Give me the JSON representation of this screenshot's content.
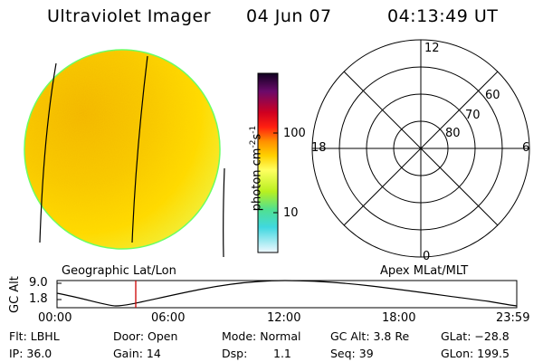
{
  "header": {
    "title": "Ultraviolet Imager",
    "date": "04 Jun 07",
    "time": "04:13:49 UT"
  },
  "colorbar": {
    "unit_text": "photon cm",
    "unit_exp1": "-2",
    "unit_s": "s",
    "unit_exp2": "-1",
    "ticks": [
      "100",
      "10"
    ],
    "colors": [
      "#1a0a3a",
      "#6a0a6a",
      "#c00020",
      "#ff2010",
      "#ff8000",
      "#ffd000",
      "#ffff60",
      "#b8f020",
      "#40e0c0",
      "#e8f8ff"
    ]
  },
  "polar": {
    "labels": {
      "noon": "12",
      "dusk": "18",
      "dawn": "6",
      "midnight": "0",
      "lat60": "60",
      "lat70": "70",
      "lat80": "80"
    }
  },
  "timeline": {
    "left_label": "Geographic Lat/Lon",
    "right_label": "Apex MLat/MLT",
    "axis_title": "GC Alt",
    "y_ticks": [
      "9.0",
      "1.8"
    ],
    "x_ticks": [
      "00:00",
      "06:00",
      "12:00",
      "18:00",
      "23:59"
    ],
    "marker_color": "#cc0000"
  },
  "footer": {
    "row1": {
      "filter": "Flt: LBHL",
      "door": "Door: Open",
      "mode": "Mode: Normal",
      "gc_alt": "GC Alt: 3.8 Re",
      "glat": "GLat: −28.8"
    },
    "row2": {
      "ip": "IP: 36.0",
      "gain": "Gain: 14",
      "dsp_label": "Dsp:",
      "dsp_value": "1.1",
      "seq": "Seq: 39",
      "glon": "GLon: 199.5"
    }
  },
  "image": {
    "disk_color": "#ffd400",
    "disk_edge": "#66ff66"
  }
}
